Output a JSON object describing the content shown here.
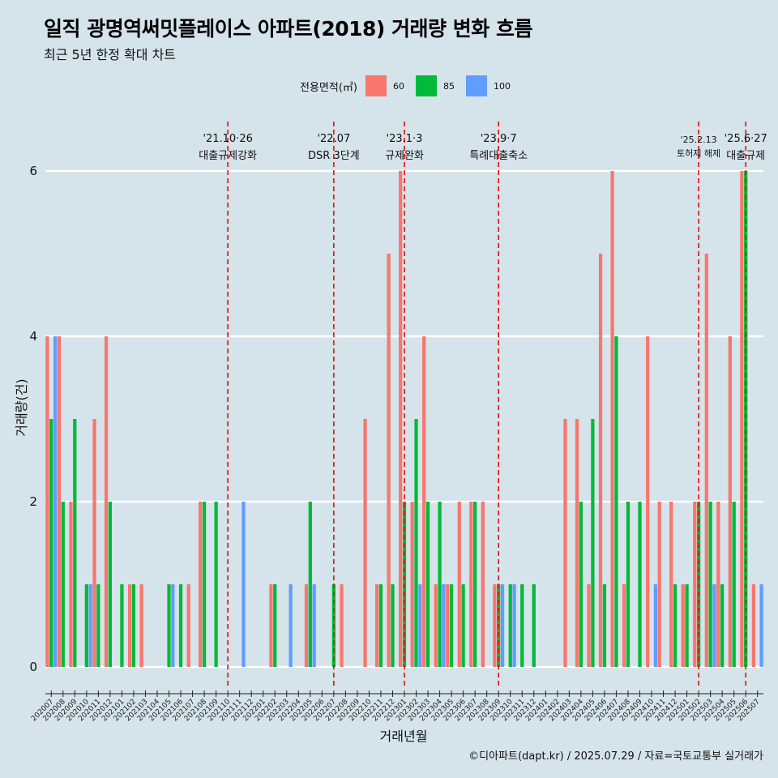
{
  "title": "일직 광명역써밋플레이스 아파트(2018) 거래량 변화 흐름",
  "subtitle": "최근 5년 한정 확대 차트",
  "caption": "©디아파트(dapt.kr) / 2025.07.29 / 자료=국토교통부 실거래가",
  "legend": {
    "title": "전용면적(㎡)",
    "items": [
      {
        "label": "60",
        "color": "#f8766d"
      },
      {
        "label": "85",
        "color": "#00ba38"
      },
      {
        "label": "100",
        "color": "#619cff"
      }
    ]
  },
  "chart_data": {
    "type": "bar",
    "xlabel": "거래년월",
    "ylabel": "거래량(건)",
    "ylim": [
      0,
      6
    ],
    "yticks": [
      0,
      2,
      4,
      6
    ],
    "grid": true,
    "categories": [
      "202007",
      "202008",
      "202009",
      "202010",
      "202011",
      "202012",
      "202101",
      "202102",
      "202103",
      "202104",
      "202105",
      "202106",
      "202107",
      "202108",
      "202109",
      "202110",
      "202111",
      "202112",
      "202201",
      "202202",
      "202203",
      "202204",
      "202205",
      "202206",
      "202207",
      "202208",
      "202209",
      "202210",
      "202211",
      "202212",
      "202301",
      "202302",
      "202303",
      "202304",
      "202305",
      "202306",
      "202307",
      "202308",
      "202309",
      "202310",
      "202311",
      "202312",
      "202401",
      "202402",
      "202403",
      "202404",
      "202405",
      "202406",
      "202407",
      "202408",
      "202409",
      "202410",
      "202411",
      "202412",
      "202501",
      "202502",
      "202503",
      "202504",
      "202505",
      "202506",
      "202507"
    ],
    "series": [
      {
        "name": "60",
        "color": "#f8766d",
        "values": [
          4,
          4,
          2,
          0,
          3,
          4,
          0,
          1,
          1,
          0,
          0,
          0,
          1,
          2,
          0,
          0,
          0,
          0,
          0,
          1,
          0,
          0,
          1,
          0,
          0,
          1,
          0,
          3,
          1,
          5,
          6,
          2,
          4,
          1,
          1,
          2,
          2,
          2,
          1,
          0,
          0,
          0,
          0,
          0,
          3,
          3,
          1,
          5,
          6,
          1,
          0,
          4,
          2,
          2,
          1,
          2,
          5,
          2,
          4,
          6,
          1
        ]
      },
      {
        "name": "85",
        "color": "#00ba38",
        "values": [
          3,
          2,
          3,
          1,
          1,
          2,
          1,
          1,
          0,
          0,
          1,
          1,
          0,
          2,
          2,
          0,
          0,
          0,
          0,
          1,
          0,
          0,
          2,
          0,
          1,
          0,
          0,
          0,
          1,
          1,
          2,
          3,
          2,
          2,
          1,
          1,
          2,
          0,
          1,
          1,
          1,
          1,
          0,
          0,
          0,
          2,
          3,
          1,
          4,
          2,
          2,
          0,
          0,
          1,
          1,
          2,
          2,
          1,
          2,
          6,
          0
        ]
      },
      {
        "name": "100",
        "color": "#619cff",
        "values": [
          4,
          0,
          0,
          1,
          0,
          0,
          0,
          0,
          0,
          0,
          1,
          0,
          0,
          0,
          0,
          0,
          2,
          0,
          0,
          0,
          1,
          0,
          1,
          0,
          0,
          0,
          0,
          0,
          0,
          0,
          0,
          1,
          0,
          1,
          0,
          0,
          0,
          0,
          1,
          1,
          0,
          0,
          0,
          0,
          0,
          0,
          0,
          0,
          0,
          0,
          0,
          1,
          0,
          0,
          0,
          0,
          1,
          0,
          0,
          0,
          1
        ]
      }
    ],
    "annotations": [
      {
        "date": "'21.10·26",
        "label": "대출규제강화",
        "position": "202110"
      },
      {
        "date": "'22.07",
        "label": "DSR 3단계",
        "position": "202207"
      },
      {
        "date": "'23.1·3",
        "label": "규제완화",
        "position": "202301"
      },
      {
        "date": "'23.9·7",
        "label": "특례대출축소",
        "position": "202309"
      },
      {
        "date": "'25.2.13",
        "label": "토허제 해제",
        "position": "202502"
      },
      {
        "date": "'25.6·27",
        "label": "대출규제",
        "position": "202506"
      }
    ]
  }
}
